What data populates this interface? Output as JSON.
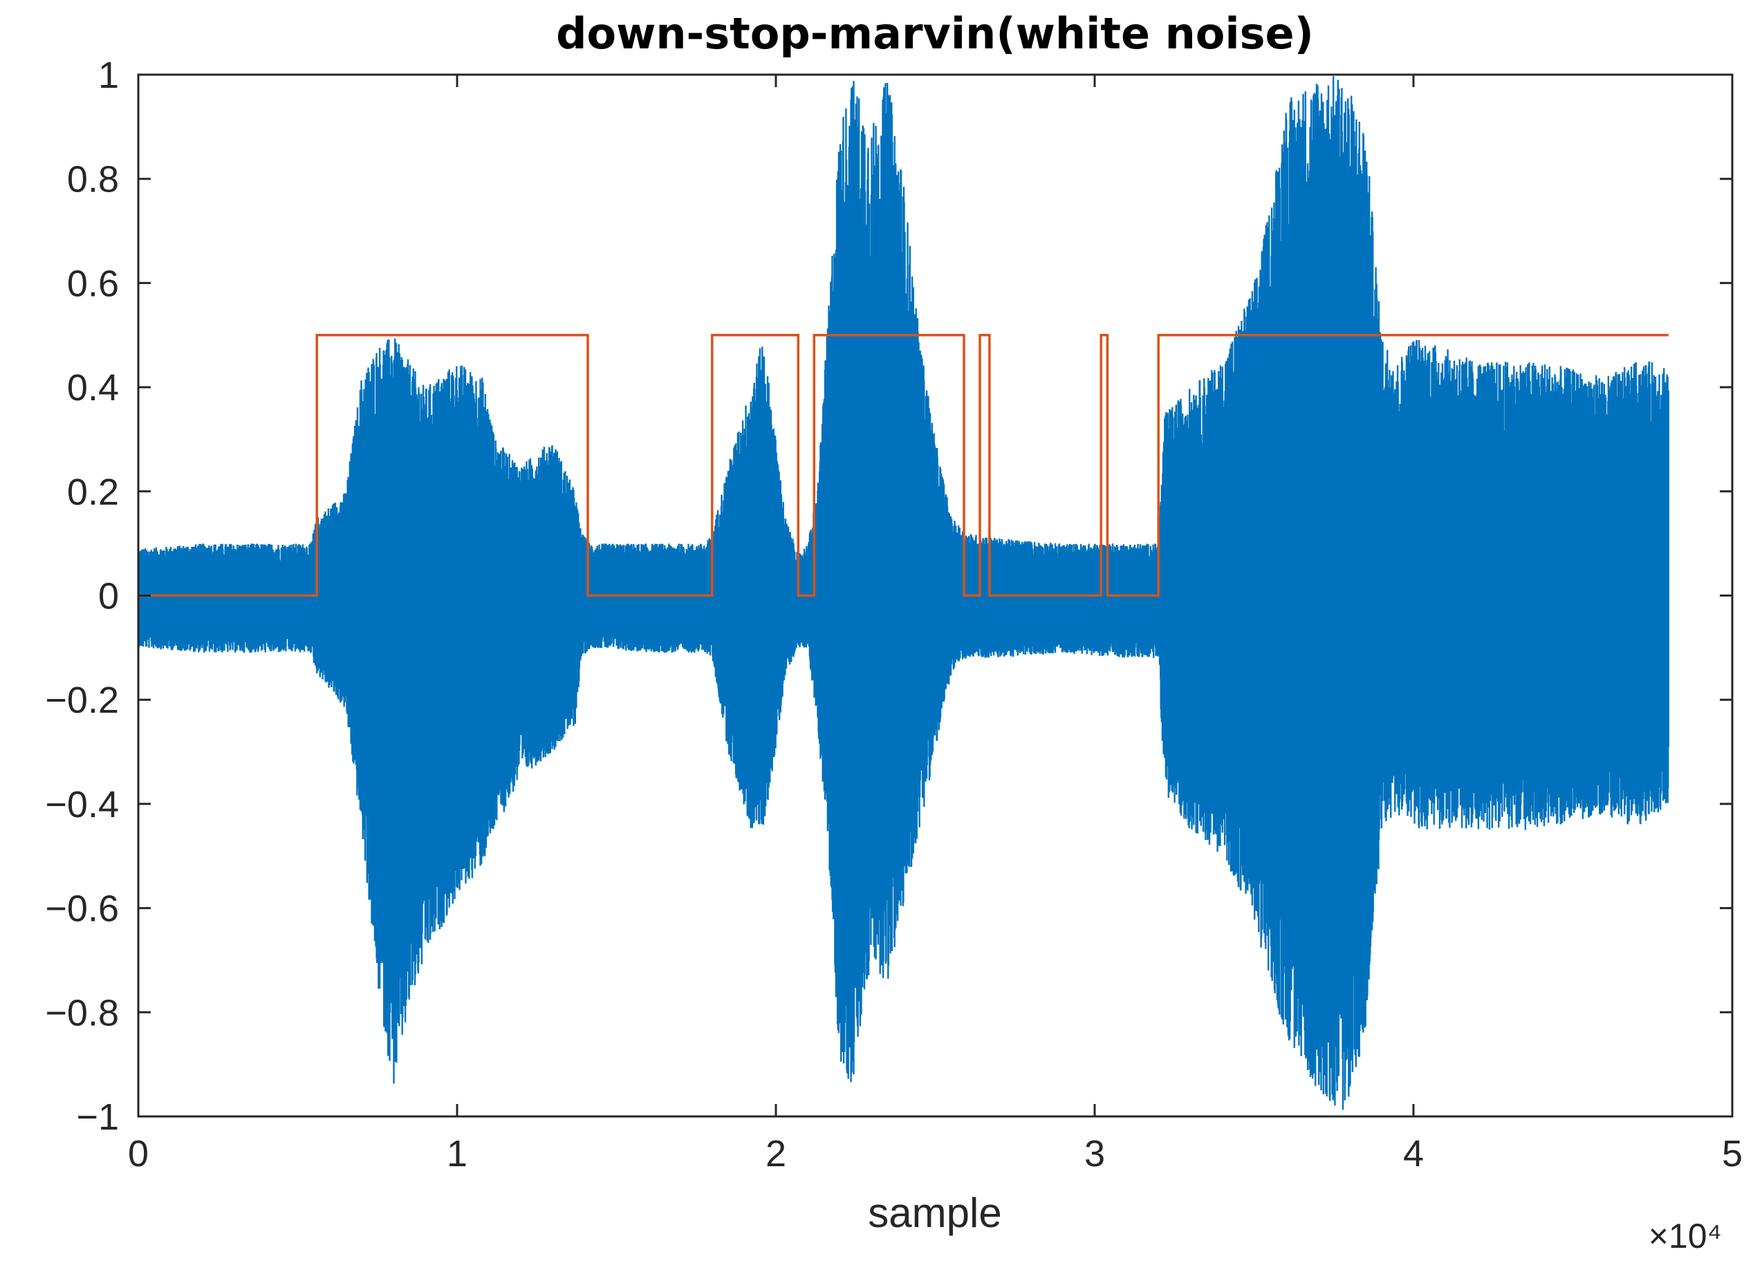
{
  "chart_data": {
    "type": "line",
    "title": "down-stop-marvin(white noise)",
    "xlabel": "sample",
    "ylabel": "",
    "x_exponent_label": "×10⁴",
    "xlim": [
      0,
      50000
    ],
    "ylim": [
      -1,
      1
    ],
    "x_ticks": [
      0,
      10000,
      20000,
      30000,
      40000,
      50000
    ],
    "x_tick_labels": [
      "0",
      "1",
      "2",
      "3",
      "4",
      "5"
    ],
    "y_ticks": [
      -1,
      -0.8,
      -0.6,
      -0.4,
      -0.2,
      0,
      0.2,
      0.4,
      0.6,
      0.8,
      1
    ],
    "y_tick_labels": [
      "−1",
      "−0.8",
      "−0.6",
      "−0.4",
      "−0.2",
      "0",
      "0.2",
      "0.4",
      "0.6",
      "0.8",
      "1"
    ],
    "grid": false,
    "colors": {
      "waveform": "#0072bd",
      "vad": "#d95319",
      "axis": "#262626"
    },
    "series": [
      {
        "kind": "waveform-envelope",
        "x": [
          0,
          2000,
          4000,
          5400,
          5600,
          6500,
          7000,
          7500,
          8000,
          8500,
          9000,
          10000,
          10800,
          11200,
          12000,
          13000,
          13700,
          13900,
          14200,
          16000,
          17800,
          18000,
          18500,
          19200,
          19600,
          20000,
          20300,
          20700,
          21000,
          21300,
          21600,
          22000,
          22400,
          23000,
          23500,
          24000,
          24500,
          25000,
          25500,
          26000,
          27000,
          29000,
          31000,
          32000,
          32200,
          33000,
          34000,
          35000,
          35500,
          36000,
          37000,
          37800,
          38500,
          39000,
          39500,
          40000,
          42000,
          44000,
          46000,
          47000,
          48000
        ],
        "upper": [
          0.09,
          0.1,
          0.1,
          0.1,
          0.15,
          0.2,
          0.42,
          0.48,
          0.5,
          0.45,
          0.4,
          0.45,
          0.42,
          0.3,
          0.25,
          0.3,
          0.2,
          0.12,
          0.1,
          0.1,
          0.1,
          0.12,
          0.25,
          0.4,
          0.5,
          0.3,
          0.15,
          0.08,
          0.1,
          0.2,
          0.5,
          0.9,
          1.0,
          0.9,
          1.0,
          0.8,
          0.5,
          0.3,
          0.15,
          0.12,
          0.11,
          0.1,
          0.1,
          0.1,
          0.35,
          0.4,
          0.45,
          0.6,
          0.75,
          0.95,
          1.0,
          1.0,
          0.9,
          0.5,
          0.45,
          0.5,
          0.45,
          0.45,
          0.42,
          0.45,
          0.45
        ],
        "lower": [
          -0.1,
          -0.11,
          -0.11,
          -0.11,
          -0.15,
          -0.22,
          -0.45,
          -0.75,
          -0.95,
          -0.8,
          -0.7,
          -0.58,
          -0.52,
          -0.45,
          -0.35,
          -0.3,
          -0.25,
          -0.12,
          -0.1,
          -0.11,
          -0.11,
          -0.12,
          -0.3,
          -0.45,
          -0.45,
          -0.3,
          -0.15,
          -0.1,
          -0.1,
          -0.25,
          -0.45,
          -0.9,
          -0.95,
          -0.7,
          -0.75,
          -0.6,
          -0.45,
          -0.3,
          -0.15,
          -0.12,
          -0.12,
          -0.11,
          -0.12,
          -0.12,
          -0.38,
          -0.45,
          -0.5,
          -0.62,
          -0.75,
          -0.85,
          -0.95,
          -1.0,
          -0.85,
          -0.45,
          -0.42,
          -0.45,
          -0.45,
          -0.45,
          -0.42,
          -0.45,
          -0.4
        ]
      },
      {
        "kind": "step",
        "x": [
          0,
          5600,
          5600,
          14100,
          14100,
          18000,
          18000,
          20700,
          20700,
          21200,
          21200,
          25900,
          25900,
          26400,
          26400,
          26700,
          26700,
          30200,
          30200,
          30400,
          30400,
          32000,
          32000,
          48000
        ],
        "y": [
          0,
          0,
          0.5,
          0.5,
          0,
          0,
          0.5,
          0.5,
          0,
          0,
          0.5,
          0.5,
          0,
          0,
          0.5,
          0.5,
          0,
          0,
          0.5,
          0.5,
          0,
          0,
          0.5,
          0.5
        ]
      }
    ]
  }
}
